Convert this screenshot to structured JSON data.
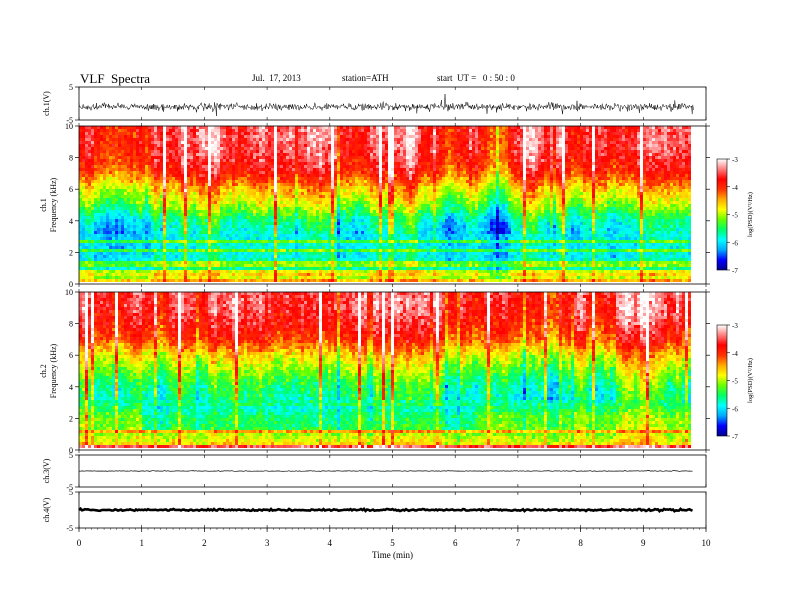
{
  "header": {
    "title": "VLF  Spectra",
    "date": "Jul.  17, 2013",
    "station": "station=ATH",
    "start": "start  UT =   0 : 50 : 0"
  },
  "colorbar": {
    "label": "log(PSD)(V²/Hz)",
    "ticks": [
      "-3",
      "-4",
      "-5",
      "-6",
      "-7"
    ],
    "range": [
      -7,
      -3
    ],
    "colors": [
      "#00008b",
      "#0000ff",
      "#00aaff",
      "#00ffff",
      "#00ff66",
      "#66ff00",
      "#ffff00",
      "#ffaa00",
      "#ff3300",
      "#ff0000",
      "#ff8080",
      "#ffffff"
    ]
  },
  "chart_data": [
    {
      "type": "line",
      "name": "ch1-waveform",
      "ylabel": "ch.1(V)",
      "ylim": [
        -5,
        5
      ],
      "yticks": [
        "5",
        "-5"
      ],
      "x_range_min": [
        0,
        9.8
      ],
      "description_level": "noisy waveform around -1 V, amplitude about ±1.5 V"
    },
    {
      "type": "heatmap",
      "name": "ch1-spectrogram",
      "ylabel": "ch.1\nFrequency  (kHz)",
      "ylabel_lines": [
        "ch.1",
        "Frequency  (kHz)"
      ],
      "ylim": [
        0,
        10
      ],
      "yticks": [
        "0",
        "2",
        "4",
        "6",
        "8",
        "10"
      ],
      "xlim": [
        0,
        9.8
      ],
      "profile_khz": [
        0,
        0.5,
        1,
        2,
        3,
        4,
        5,
        6,
        7,
        8,
        9,
        10
      ],
      "profile_logpsd": [
        -4.0,
        -5.2,
        -5.6,
        -5.8,
        -5.8,
        -5.5,
        -4.8,
        -4.3,
        -3.6,
        -3.3,
        -3.2,
        -3.2
      ]
    },
    {
      "type": "heatmap",
      "name": "ch2-spectrogram",
      "ylabel": "ch.2\nFrequency  (kHz)",
      "ylabel_lines": [
        "ch.2",
        "Frequency  (kHz)"
      ],
      "ylim": [
        0,
        10
      ],
      "yticks": [
        "0",
        "2",
        "4",
        "6",
        "8",
        "10"
      ],
      "xlim": [
        0,
        9.8
      ],
      "profile_khz": [
        0,
        0.5,
        1,
        2,
        3,
        4,
        5,
        6,
        7,
        8,
        9,
        10
      ],
      "profile_logpsd": [
        -4.3,
        -4.6,
        -4.9,
        -5.0,
        -5.5,
        -5.3,
        -4.9,
        -4.4,
        -3.7,
        -3.4,
        -3.2,
        -3.2
      ]
    },
    {
      "type": "line",
      "name": "ch3-waveform",
      "ylabel": "ch.3(V)",
      "ylim": [
        -5,
        5
      ],
      "yticks": [
        "5",
        "-5"
      ],
      "level": 0
    },
    {
      "type": "line",
      "name": "ch4-waveform",
      "ylabel": "ch.4(V)",
      "ylim": [
        -5,
        5
      ],
      "yticks": [
        "5",
        "-5"
      ],
      "level": 0
    }
  ],
  "xaxis": {
    "label": "Time  (min)",
    "ticks": [
      "0",
      "1",
      "2",
      "3",
      "4",
      "5",
      "6",
      "7",
      "8",
      "9",
      "10"
    ],
    "xlim": [
      0,
      10
    ]
  }
}
